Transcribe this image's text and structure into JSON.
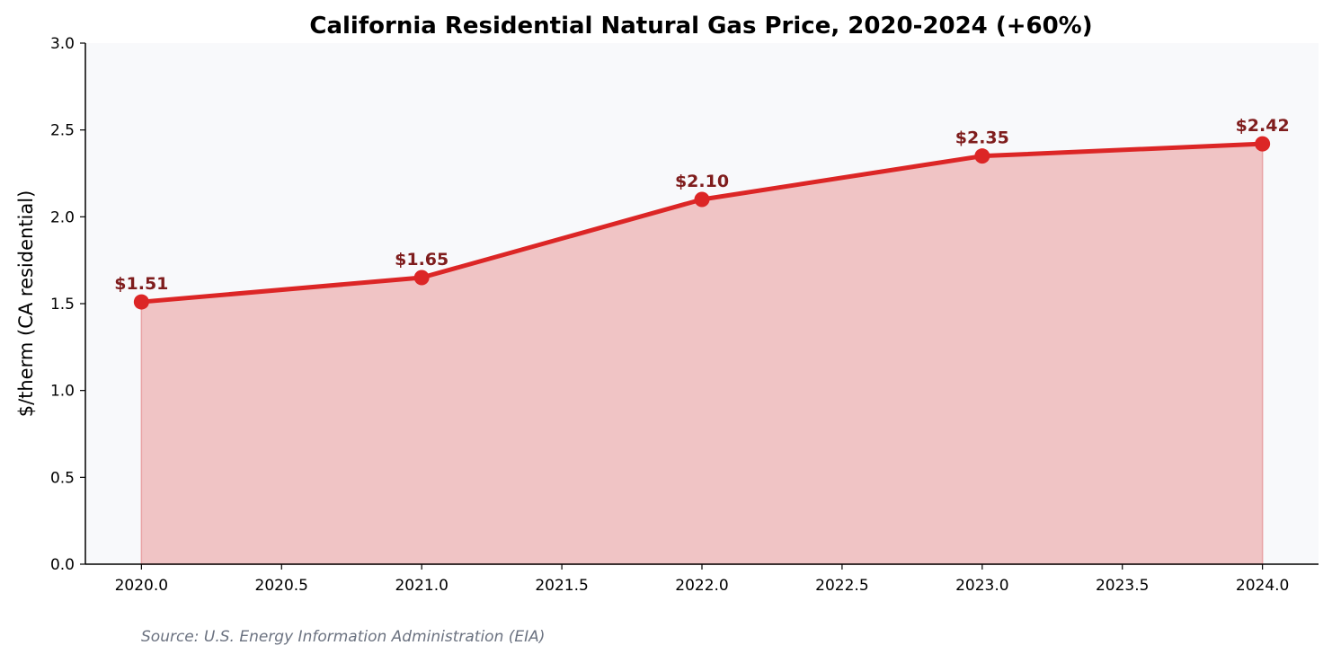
{
  "chart_data": {
    "type": "area",
    "title": "California Residential Natural Gas Price, 2020-2024 (+60%)",
    "xlabel": "",
    "ylabel": "$/therm (CA residential)",
    "x": [
      2020,
      2021,
      2022,
      2023,
      2024
    ],
    "series": [
      {
        "values": [
          1.51,
          1.65,
          2.1,
          2.35,
          2.42
        ]
      }
    ],
    "data_labels": [
      "$1.51",
      "$1.65",
      "$2.10",
      "$2.35",
      "$2.42"
    ],
    "xlim": [
      2019.8,
      2024.2
    ],
    "ylim": [
      0,
      3.0
    ],
    "x_ticks": [
      "2020.0",
      "2020.5",
      "2021.0",
      "2021.5",
      "2022.0",
      "2022.5",
      "2023.0",
      "2023.5",
      "2024.0"
    ],
    "y_ticks": [
      "0.0",
      "0.5",
      "1.0",
      "1.5",
      "2.0",
      "2.5",
      "3.0"
    ],
    "grid": false,
    "legend": "none",
    "source_note": "Source: U.S. Energy Information Administration (EIA)",
    "colors": {
      "line": "#dc2626",
      "fill": "#f0c4c5",
      "label": "#7f1d1d",
      "plot_background": "#f8f9fb",
      "source_text": "#6b7280"
    }
  }
}
